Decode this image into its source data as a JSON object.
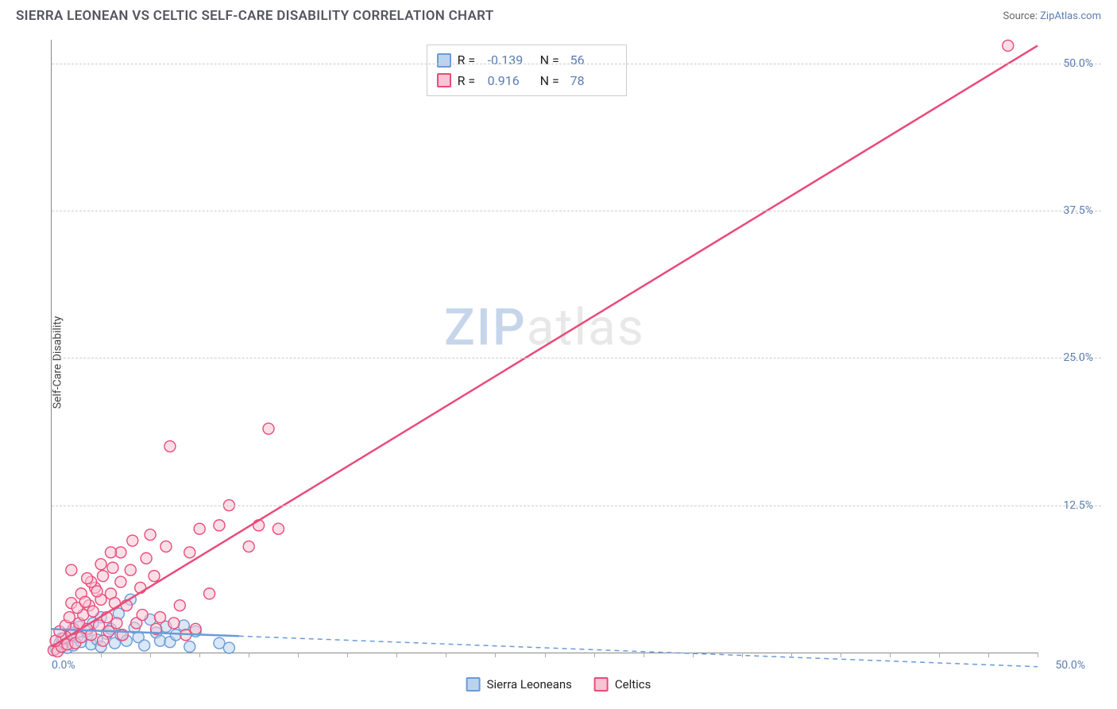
{
  "title": "SIERRA LEONEAN VS CELTIC SELF-CARE DISABILITY CORRELATION CHART",
  "source_label": "Source: ",
  "source_name": "ZipAtlas.com",
  "ylabel": "Self-Care Disability",
  "watermark": {
    "part1": "ZIP",
    "part2": "atlas"
  },
  "chart": {
    "type": "scatter",
    "xlim": [
      0,
      50
    ],
    "ylim": [
      0,
      52
    ],
    "x_tick_0": "0.0%",
    "x_tick_max": "50.0%",
    "y_ticks": [
      {
        "v": 12.5,
        "label": "12.5%"
      },
      {
        "v": 25.0,
        "label": "25.0%"
      },
      {
        "v": 37.5,
        "label": "37.5%"
      },
      {
        "v": 50.0,
        "label": "50.0%"
      }
    ],
    "x_minor_step": 2.5,
    "background_color": "#ffffff",
    "grid_color": "#cccccc",
    "axis_color": "#888888",
    "tick_label_color": "#5b7db1",
    "marker_radius": 7,
    "marker_stroke_width": 1.4,
    "series": [
      {
        "name": "Sierra Leoneans",
        "color_fill": "#bcd3ee",
        "color_stroke": "#6a9bd8",
        "fill_opacity": 0.55,
        "R": "-0.139",
        "N": "56",
        "trend": {
          "x1": 0,
          "y1": 2.0,
          "x2": 9.5,
          "y2": 1.4,
          "dash_x2": 50,
          "dash_y2": -1.2,
          "width": 2.5
        },
        "points": [
          [
            0.2,
            0.3
          ],
          [
            0.4,
            0.8
          ],
          [
            0.5,
            1.2
          ],
          [
            0.8,
            0.4
          ],
          [
            1.0,
            1.7
          ],
          [
            1.1,
            0.6
          ],
          [
            1.3,
            1.3
          ],
          [
            1.4,
            2.2
          ],
          [
            1.5,
            0.9
          ],
          [
            1.8,
            1.8
          ],
          [
            2.0,
            0.7
          ],
          [
            2.1,
            2.5
          ],
          [
            2.3,
            1.1
          ],
          [
            2.5,
            3.0
          ],
          [
            2.5,
            0.5
          ],
          [
            2.8,
            1.6
          ],
          [
            3.0,
            2.0
          ],
          [
            3.2,
            0.8
          ],
          [
            3.4,
            3.3
          ],
          [
            3.5,
            1.5
          ],
          [
            3.8,
            1.0
          ],
          [
            4.0,
            4.5
          ],
          [
            4.2,
            2.1
          ],
          [
            4.4,
            1.3
          ],
          [
            4.7,
            0.6
          ],
          [
            5.0,
            2.8
          ],
          [
            5.3,
            1.7
          ],
          [
            5.5,
            1.0
          ],
          [
            5.8,
            2.2
          ],
          [
            6.0,
            0.9
          ],
          [
            6.3,
            1.5
          ],
          [
            6.7,
            2.3
          ],
          [
            7.0,
            0.5
          ],
          [
            7.3,
            1.8
          ],
          [
            8.5,
            0.8
          ],
          [
            9.0,
            0.4
          ]
        ]
      },
      {
        "name": "Celtics",
        "color_fill": "#f7c4d4",
        "color_stroke": "#e94b7a",
        "fill_opacity": 0.55,
        "R": "0.916",
        "N": "78",
        "trend": {
          "x1": 0,
          "y1": 0.5,
          "x2": 50,
          "y2": 51.5,
          "width": 2.5
        },
        "points": [
          [
            0.1,
            0.2
          ],
          [
            0.3,
            0.1
          ],
          [
            0.5,
            0.5
          ],
          [
            0.6,
            1.2
          ],
          [
            0.8,
            0.7
          ],
          [
            1.0,
            1.5
          ],
          [
            1.1,
            2.0
          ],
          [
            1.2,
            0.8
          ],
          [
            1.4,
            2.5
          ],
          [
            1.5,
            1.3
          ],
          [
            1.6,
            3.2
          ],
          [
            1.8,
            2.0
          ],
          [
            1.9,
            4.0
          ],
          [
            2.0,
            1.5
          ],
          [
            2.1,
            3.5
          ],
          [
            2.2,
            5.5
          ],
          [
            2.4,
            2.3
          ],
          [
            2.5,
            4.5
          ],
          [
            2.6,
            6.5
          ],
          [
            2.8,
            3.0
          ],
          [
            3.0,
            5.0
          ],
          [
            3.1,
            7.2
          ],
          [
            3.3,
            2.5
          ],
          [
            3.5,
            6.0
          ],
          [
            3.5,
            8.5
          ],
          [
            3.8,
            4.0
          ],
          [
            4.0,
            7.0
          ],
          [
            4.1,
            9.5
          ],
          [
            4.5,
            5.5
          ],
          [
            4.8,
            8.0
          ],
          [
            5.0,
            10.0
          ],
          [
            5.2,
            6.5
          ],
          [
            5.5,
            3.0
          ],
          [
            5.8,
            9.0
          ],
          [
            6.0,
            17.5
          ],
          [
            6.5,
            4.0
          ],
          [
            7.0,
            8.5
          ],
          [
            7.5,
            10.5
          ],
          [
            8.0,
            5.0
          ],
          [
            8.5,
            10.8
          ],
          [
            9.0,
            12.5
          ],
          [
            10.0,
            9.0
          ],
          [
            10.5,
            10.8
          ],
          [
            11.0,
            19.0
          ],
          [
            11.5,
            10.5
          ],
          [
            48.5,
            51.5
          ],
          [
            0.2,
            1.0
          ],
          [
            0.4,
            1.8
          ],
          [
            0.7,
            2.3
          ],
          [
            0.9,
            3.0
          ],
          [
            1.0,
            4.2
          ],
          [
            1.3,
            3.8
          ],
          [
            1.5,
            5.0
          ],
          [
            1.7,
            4.3
          ],
          [
            2.0,
            6.0
          ],
          [
            2.3,
            5.2
          ],
          [
            2.6,
            1.0
          ],
          [
            2.9,
            1.8
          ],
          [
            3.2,
            4.2
          ],
          [
            3.6,
            1.5
          ],
          [
            4.3,
            2.5
          ],
          [
            4.6,
            3.2
          ],
          [
            5.3,
            2.0
          ],
          [
            6.2,
            2.5
          ],
          [
            6.8,
            1.5
          ],
          [
            7.3,
            2.0
          ],
          [
            1.0,
            7.0
          ],
          [
            1.8,
            6.3
          ],
          [
            2.5,
            7.5
          ],
          [
            3.0,
            8.5
          ]
        ]
      }
    ]
  },
  "legend_top": {
    "r_label": "R =",
    "n_label": "N ="
  },
  "legend_bottom": [
    {
      "label": "Sierra Leoneans",
      "series": 0
    },
    {
      "label": "Celtics",
      "series": 1
    }
  ]
}
